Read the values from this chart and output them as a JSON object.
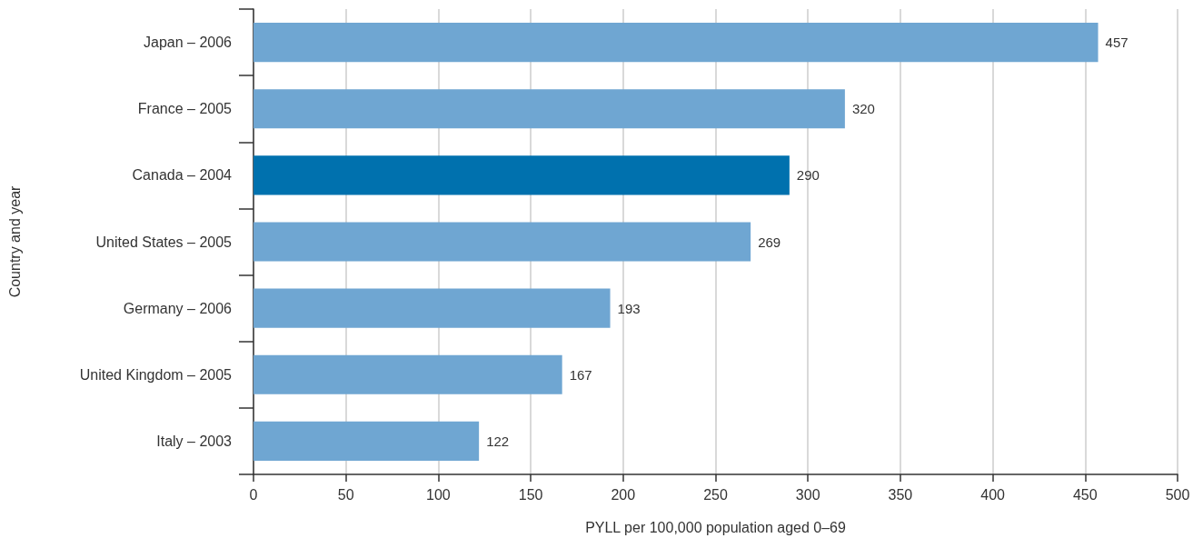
{
  "chart_data": {
    "type": "bar",
    "orientation": "horizontal",
    "categories": [
      "Japan – 2006",
      "France – 2005",
      "Canada – 2004",
      "United States – 2005",
      "Germany – 2006",
      "United Kingdom – 2005",
      "Italy – 2003"
    ],
    "values": [
      457,
      320,
      290,
      269,
      193,
      167,
      122
    ],
    "colors": [
      "#6fa6d2",
      "#6fa6d2",
      "#0071ae",
      "#6fa6d2",
      "#6fa6d2",
      "#6fa6d2",
      "#6fa6d2"
    ],
    "xlabel": "PYLL per 100,000 population aged 0–69",
    "ylabel": "Country and year",
    "xlim": [
      0,
      500
    ],
    "xticks": [
      0,
      50,
      100,
      150,
      200,
      250,
      300,
      350,
      400,
      450,
      500
    ],
    "data_labels": true,
    "grid": "x"
  }
}
